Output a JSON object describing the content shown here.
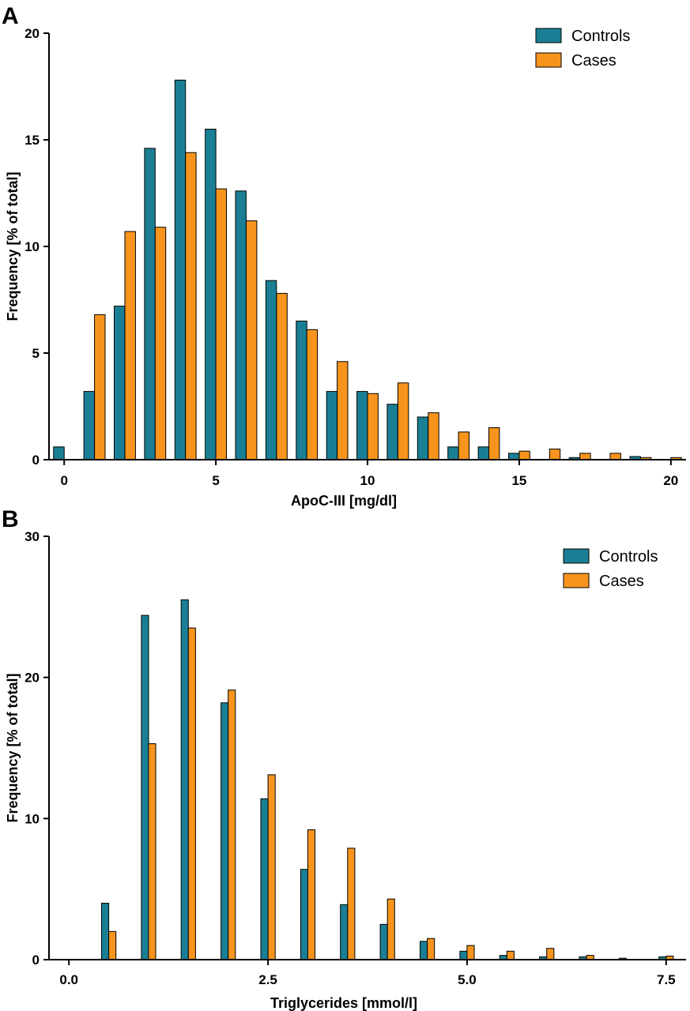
{
  "chart_data": [
    {
      "panel": "A",
      "type": "bar",
      "title": "",
      "xlabel": "ApoC-III [mg/dl]",
      "ylabel": "Frequency [% of total]",
      "xlim": [
        -0.5,
        20.5
      ],
      "ylim": [
        0,
        20
      ],
      "xticks": [
        "0",
        "5",
        "10",
        "15",
        "20"
      ],
      "xtick_values": [
        0,
        5,
        10,
        15,
        20
      ],
      "yticks": [
        "0",
        "5",
        "10",
        "15",
        "20"
      ],
      "ytick_values": [
        0,
        5,
        10,
        15,
        20
      ],
      "legend_position": "top-right",
      "bar_width": 0.35,
      "x": [
        0,
        1,
        2,
        3,
        4,
        5,
        6,
        7,
        8,
        9,
        10,
        11,
        12,
        13,
        14,
        15,
        16,
        17,
        18,
        19,
        20
      ],
      "series": [
        {
          "name": "Controls",
          "color": "#1a7f95",
          "values": [
            0.6,
            3.2,
            7.2,
            14.6,
            17.8,
            15.5,
            12.6,
            8.4,
            6.5,
            3.2,
            3.2,
            2.6,
            2.0,
            0.6,
            0.6,
            0.3,
            0,
            0.1,
            0,
            0.15,
            0
          ]
        },
        {
          "name": "Cases",
          "color": "#f7941d",
          "values": [
            0,
            6.8,
            10.7,
            10.9,
            14.4,
            12.7,
            11.2,
            7.8,
            6.1,
            4.6,
            3.1,
            3.6,
            2.2,
            1.3,
            1.5,
            0.4,
            0.5,
            0.3,
            0.3,
            0.1,
            0.1
          ]
        }
      ]
    },
    {
      "panel": "B",
      "type": "bar",
      "title": "",
      "xlabel": "Triglycerides [mmol/l]",
      "ylabel": "Frequency [% of total]",
      "xlim": [
        -0.25,
        7.75
      ],
      "ylim": [
        0,
        30
      ],
      "xticks": [
        "0.0",
        "2.5",
        "5.0",
        "7.5"
      ],
      "xtick_values": [
        0,
        2.5,
        5,
        7.5
      ],
      "yticks": [
        "0",
        "10",
        "20",
        "30"
      ],
      "ytick_values": [
        0,
        10,
        20,
        30
      ],
      "legend_position": "top-right",
      "bar_width": 0.09,
      "x": [
        0.5,
        1.0,
        1.5,
        2.0,
        2.5,
        3.0,
        3.5,
        4.0,
        4.5,
        5.0,
        5.5,
        6.0,
        6.5,
        7.0,
        7.5
      ],
      "series": [
        {
          "name": "Controls",
          "color": "#1a7f95",
          "values": [
            4.0,
            24.4,
            25.5,
            18.2,
            11.4,
            6.4,
            3.9,
            2.5,
            1.3,
            0.6,
            0.3,
            0.2,
            0.2,
            0.1,
            0.2
          ]
        },
        {
          "name": "Cases",
          "color": "#f7941d",
          "values": [
            2.0,
            15.3,
            23.5,
            19.1,
            13.1,
            9.2,
            7.9,
            4.3,
            1.5,
            1.0,
            0.6,
            0.8,
            0.3,
            0,
            0.25
          ]
        }
      ]
    }
  ]
}
